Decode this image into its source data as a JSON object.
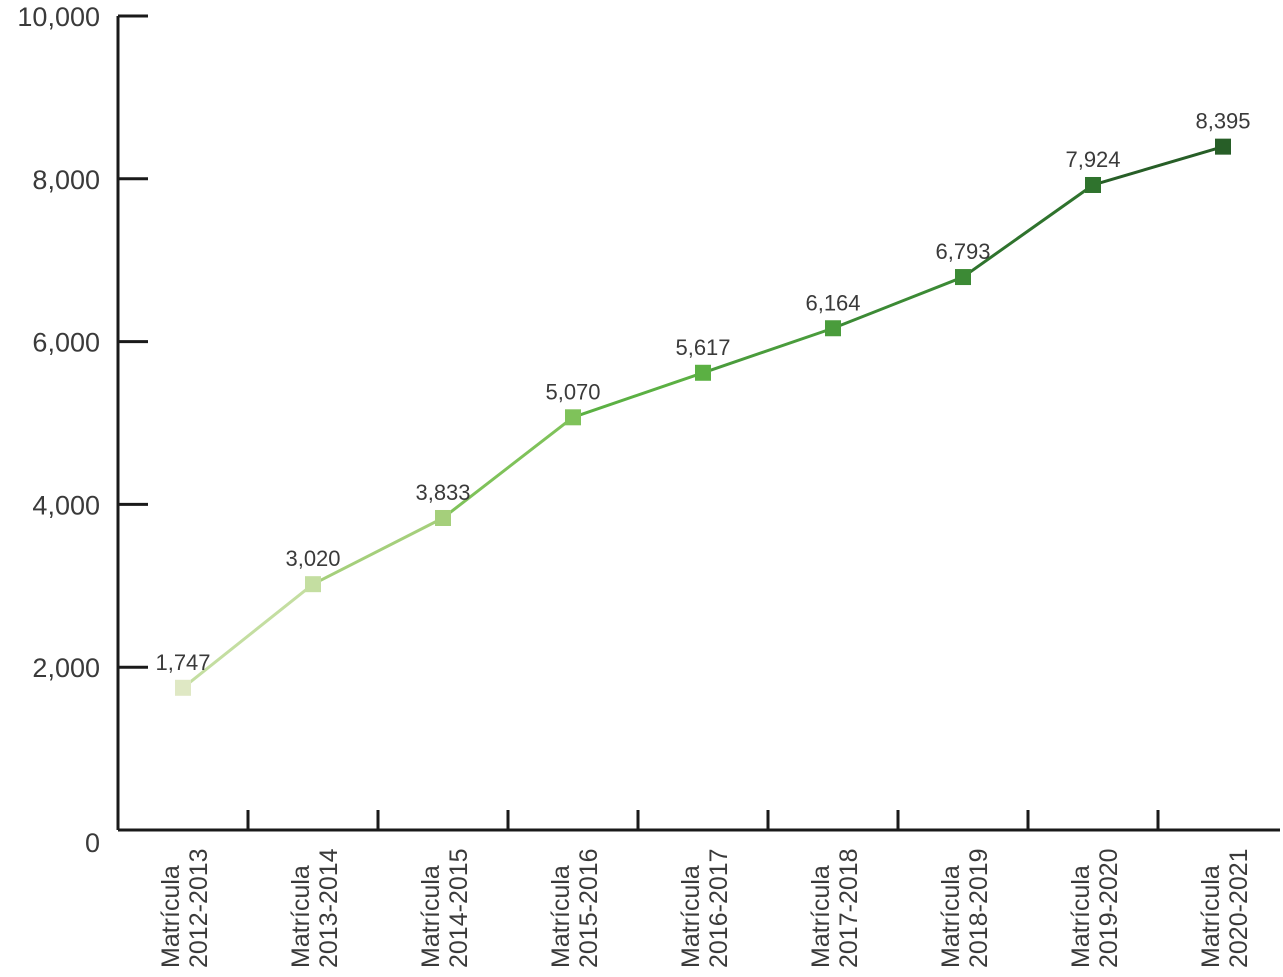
{
  "chart_data": {
    "type": "line",
    "title": "",
    "xlabel": "",
    "ylabel": "",
    "ylim": [
      0,
      10000
    ],
    "yticks": [
      0,
      2000,
      4000,
      6000,
      8000,
      10000
    ],
    "ytick_labels": [
      "0",
      "2,000",
      "4,000",
      "6,000",
      "8,000",
      "10,000"
    ],
    "grid": false,
    "legend": "none",
    "categories": [
      [
        "Matrícula",
        "2012-2013"
      ],
      [
        "Matrícula",
        "2013-2014"
      ],
      [
        "Matrícula",
        "2014-2015"
      ],
      [
        "Matrícula",
        "2015-2016"
      ],
      [
        "Matrícula",
        "2016-2017"
      ],
      [
        "Matrícula",
        "2017-2018"
      ],
      [
        "Matrícula",
        "2018-2019"
      ],
      [
        "Matrícula",
        "2019-2020"
      ],
      [
        "Matrícula",
        "2020-2021"
      ]
    ],
    "values": [
      1747,
      3020,
      3833,
      5070,
      5617,
      6164,
      6793,
      7924,
      8395
    ],
    "value_labels": [
      "1,747",
      "3,020",
      "3,833",
      "5,070",
      "5,617",
      "6,164",
      "6,793",
      "7,924",
      "8,395"
    ],
    "colors": [
      "#dfe8c4",
      "#c4deA1",
      "#a5cf7b",
      "#7fc25a",
      "#5bb043",
      "#4a9c3c",
      "#3c8a35",
      "#2f732d",
      "#275e27"
    ]
  }
}
